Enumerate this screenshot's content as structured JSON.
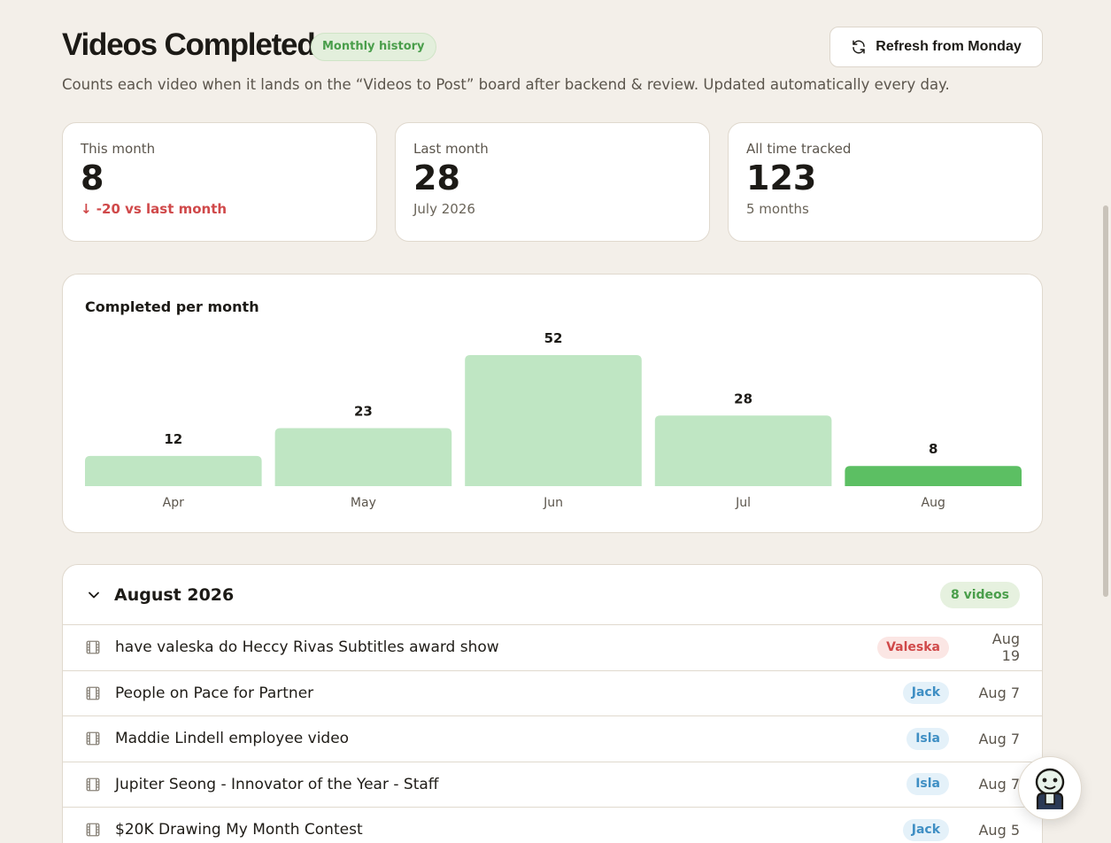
{
  "header": {
    "title": "Videos Completed",
    "badge": "Monthly history",
    "refresh_label": "Refresh from Monday",
    "subtitle": "Counts each video when it lands on the “Videos to Post” board after backend & review. Updated automatically every day."
  },
  "stats": [
    {
      "label": "This month",
      "value": "8",
      "sub": "↓ -20 vs last month",
      "sub_color": "#d0494a"
    },
    {
      "label": "Last month",
      "value": "28",
      "sub": "July 2026"
    },
    {
      "label": "All time tracked",
      "value": "123",
      "sub": "5 months"
    }
  ],
  "chart": {
    "title": "Completed per month"
  },
  "chart_data": {
    "type": "bar",
    "title": "Completed per month",
    "categories": [
      "Apr",
      "May",
      "Jun",
      "Jul",
      "Aug"
    ],
    "values": [
      12,
      23,
      52,
      28,
      8
    ],
    "highlight_index": 4,
    "colors": {
      "bar": "#bfe6c3",
      "highlight": "#5cbf63"
    },
    "ylim": [
      0,
      52
    ],
    "grid": false,
    "legend": "none"
  },
  "group": {
    "title": "August 2026",
    "count": "8 videos"
  },
  "rows": [
    {
      "title": "have valeska do Heccy Rivas Subtitles award show",
      "person": "Valeska",
      "person_color": "#d0494a",
      "person_bg": "#fbe6e4",
      "date": "Aug 19"
    },
    {
      "title": "People on Pace for Partner",
      "person": "Jack",
      "person_color": "#3f8fc4",
      "person_bg": "#e4f1f9",
      "date": "Aug 7"
    },
    {
      "title": "Maddie Lindell employee video",
      "person": "Isla",
      "person_color": "#3f8fc4",
      "person_bg": "#e4f1f9",
      "date": "Aug 7"
    },
    {
      "title": "Jupiter Seong - Innovator of the Year - Staff",
      "person": "Isla",
      "person_color": "#3f8fc4",
      "person_bg": "#e4f1f9",
      "date": "Aug 7"
    },
    {
      "title": "$20K Drawing My Month Contest",
      "person": "Jack",
      "person_color": "#3f8fc4",
      "person_bg": "#e4f1f9",
      "date": "Aug 5"
    }
  ],
  "icons": {
    "refresh": "refresh-icon",
    "chevron": "chevron-down-icon",
    "film": "film-icon",
    "bot": "assistant-bot-icon"
  }
}
